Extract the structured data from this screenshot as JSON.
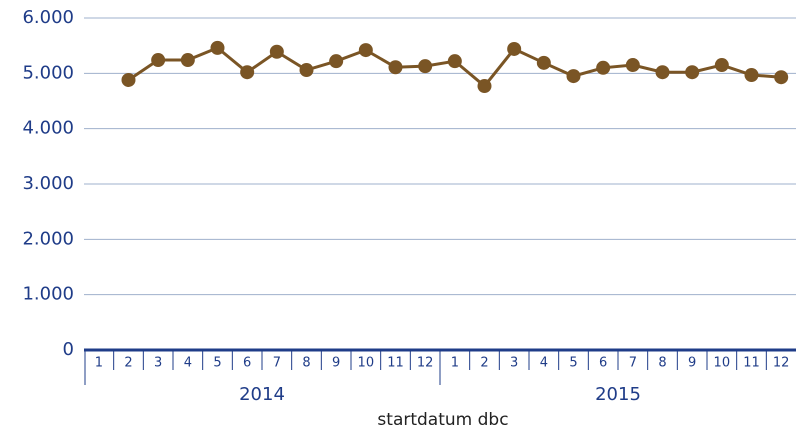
{
  "chart_data": {
    "type": "line",
    "x_label": "startdatum dbc",
    "categories": [
      "1",
      "2",
      "3",
      "4",
      "5",
      "6",
      "7",
      "8",
      "9",
      "10",
      "11",
      "12",
      "1",
      "2",
      "3",
      "4",
      "5",
      "6",
      "7",
      "8",
      "9",
      "10",
      "11",
      "12"
    ],
    "category_groups": [
      "2014",
      "2015"
    ],
    "series": [
      {
        "name": null,
        "color": "#7a5525",
        "values": [
          null,
          4880,
          5240,
          5240,
          5460,
          5020,
          5390,
          5060,
          5220,
          5420,
          5110,
          5130,
          5220,
          4770,
          5440,
          5190,
          4950,
          5100,
          5150,
          5020,
          5020,
          5150,
          4970,
          4930
        ]
      }
    ],
    "ylim": [
      0,
      6000
    ],
    "yticks": [
      0,
      {
        "value": 1000,
        "label": "1.000"
      },
      {
        "value": 2000,
        "label": "2.000"
      },
      {
        "value": 3000,
        "label": "3.000"
      },
      {
        "value": 4000,
        "label": "4.000"
      },
      {
        "value": 5000,
        "label": "5.000"
      },
      {
        "value": 6000,
        "label": "6.000"
      }
    ],
    "grid": true
  }
}
